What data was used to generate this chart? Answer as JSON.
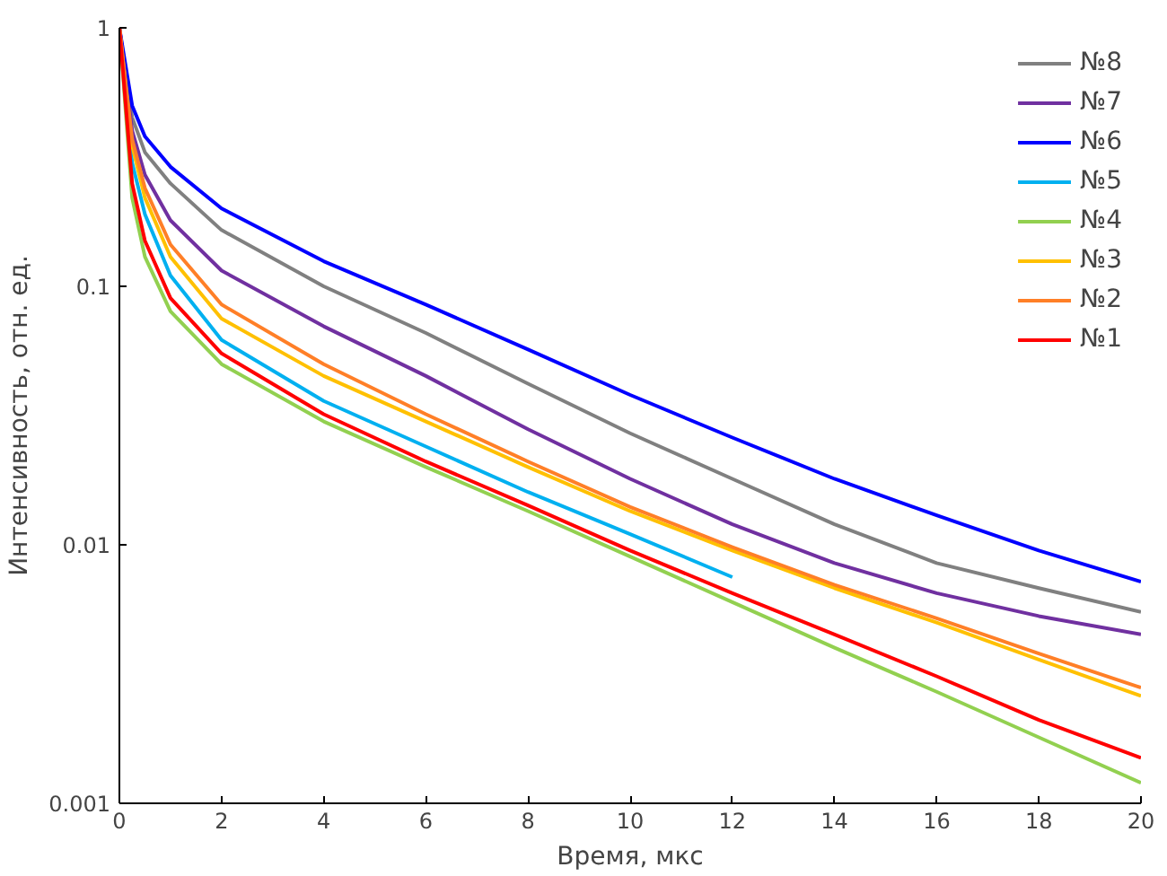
{
  "chart_data": {
    "type": "line",
    "xlabel": "Время, мкс",
    "ylabel": "Интенсивность, отн. ед.",
    "log": "y",
    "xlim": [
      0,
      20
    ],
    "ylim": [
      0.001,
      1
    ],
    "xticks": [
      0,
      2,
      4,
      6,
      8,
      10,
      12,
      14,
      16,
      18,
      20
    ],
    "yticks": [
      0.001,
      0.01,
      0.1,
      1
    ],
    "x": [
      0,
      0.25,
      0.5,
      1,
      2,
      4,
      6,
      8,
      10,
      12,
      14,
      16,
      18,
      20
    ],
    "grid": false,
    "legend": "top right",
    "line_style": "solid",
    "marker": "none",
    "series": [
      {
        "name": "№8",
        "color": "#808080",
        "values": [
          1,
          0.45,
          0.33,
          0.25,
          0.165,
          0.1,
          0.066,
          0.042,
          0.027,
          0.018,
          0.012,
          0.0085,
          0.0068,
          0.0055
        ]
      },
      {
        "name": "№7",
        "color": "#7030a0",
        "values": [
          1,
          0.4,
          0.27,
          0.18,
          0.115,
          0.07,
          0.045,
          0.028,
          0.018,
          0.012,
          0.0085,
          0.0065,
          0.0053,
          0.0045
        ]
      },
      {
        "name": "№6",
        "color": "#0000ff",
        "values": [
          1,
          0.5,
          0.38,
          0.29,
          0.2,
          0.125,
          0.085,
          0.057,
          0.038,
          0.026,
          0.018,
          0.013,
          0.0095,
          0.0072
        ]
      },
      {
        "name": "№5",
        "color": "#00b0f0",
        "values": [
          1,
          0.3,
          0.19,
          0.11,
          0.062,
          0.036,
          0.024,
          0.016,
          0.011,
          0.0075,
          null,
          null,
          null,
          null
        ]
      },
      {
        "name": "№4",
        "color": "#92d050",
        "values": [
          1,
          0.22,
          0.13,
          0.08,
          0.05,
          0.03,
          0.02,
          0.0135,
          0.009,
          0.006,
          0.004,
          0.0027,
          0.0018,
          0.0012
        ]
      },
      {
        "name": "№3",
        "color": "#ffc000",
        "values": [
          1,
          0.35,
          0.22,
          0.13,
          0.075,
          0.045,
          0.03,
          0.02,
          0.0135,
          0.0095,
          0.0068,
          0.005,
          0.0036,
          0.0026
        ]
      },
      {
        "name": "№2",
        "color": "#ff7f27",
        "values": [
          1,
          0.37,
          0.24,
          0.145,
          0.085,
          0.05,
          0.032,
          0.021,
          0.014,
          0.0098,
          0.007,
          0.0052,
          0.0038,
          0.0028
        ]
      },
      {
        "name": "№1",
        "color": "#ff0000",
        "values": [
          1,
          0.25,
          0.15,
          0.09,
          0.055,
          0.032,
          0.021,
          0.0142,
          0.0095,
          0.0065,
          0.0045,
          0.0031,
          0.0021,
          0.0015
        ]
      }
    ]
  }
}
